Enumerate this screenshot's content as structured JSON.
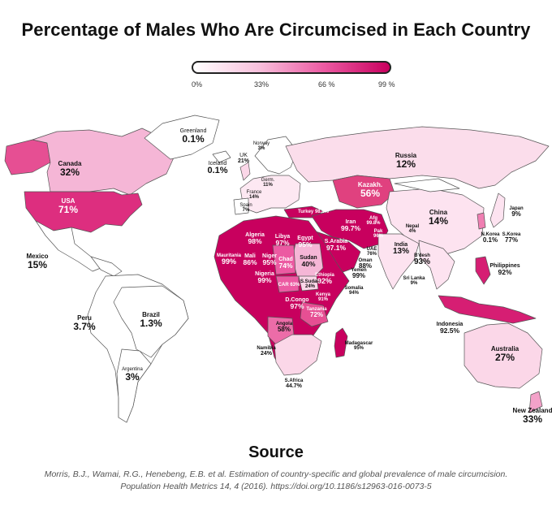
{
  "title": "Percentage of Males Who Are Circumcised in Each Country",
  "legend": {
    "ticks": [
      "0%",
      "33%",
      "66 %",
      "99 %"
    ],
    "gradient": [
      "#ffffff",
      "#f8c0dc",
      "#ec5aa2",
      "#c8005e"
    ]
  },
  "colors": {
    "low": "#fde3f0",
    "mid": "#f3a2c9",
    "high": "#e64f93",
    "top": "#c40b5e",
    "outline": "#555555"
  },
  "countries": [
    {
      "id": "greenland",
      "name": "Greenland",
      "value": "0.1%"
    },
    {
      "id": "iceland",
      "name": "Iceland",
      "value": "0.1%"
    },
    {
      "id": "norway",
      "name": "Norway",
      "value": "3%"
    },
    {
      "id": "uk",
      "name": "UK",
      "value": "21%"
    },
    {
      "id": "canada",
      "name": "Canada",
      "value": "32%"
    },
    {
      "id": "usa",
      "name": "USA",
      "value": "71%"
    },
    {
      "id": "mexico",
      "name": "Mexico",
      "value": "15%"
    },
    {
      "id": "peru",
      "name": "Peru",
      "value": "3.7%"
    },
    {
      "id": "brazil",
      "name": "Brazil",
      "value": "1.3%"
    },
    {
      "id": "argentina",
      "name": "Argentina",
      "value": "3%"
    },
    {
      "id": "russia",
      "name": "Russia",
      "value": "12%"
    },
    {
      "id": "kazakh",
      "name": "Kazakh.",
      "value": "56%"
    },
    {
      "id": "china",
      "name": "China",
      "value": "14%"
    },
    {
      "id": "japan",
      "name": "Japan",
      "value": "9%"
    },
    {
      "id": "nkorea",
      "name": "N.Korea",
      "value": "0.1%"
    },
    {
      "id": "skorea",
      "name": "S.Korea",
      "value": "77%"
    },
    {
      "id": "germany",
      "name": "Germ.",
      "value": "11%"
    },
    {
      "id": "france",
      "name": "France",
      "value": "14%"
    },
    {
      "id": "spain",
      "name": "Spain",
      "value": "7%"
    },
    {
      "id": "turkey",
      "name": "Turkey",
      "value": "98.6%"
    },
    {
      "id": "iran",
      "name": "Iran",
      "value": "99.7%"
    },
    {
      "id": "afg",
      "name": "Afg",
      "value": "99.8%"
    },
    {
      "id": "pak",
      "name": "Pak",
      "value": "96%"
    },
    {
      "id": "nepal",
      "name": "Nepal",
      "value": "4%"
    },
    {
      "id": "india",
      "name": "India",
      "value": "13%"
    },
    {
      "id": "bdesh",
      "name": "B'desh",
      "value": "93%"
    },
    {
      "id": "srilanka",
      "name": "Sri Lanka",
      "value": "9%"
    },
    {
      "id": "philippines",
      "name": "Philippines",
      "value": "92%"
    },
    {
      "id": "indonesia",
      "name": "Indonesia",
      "value": "92.5%"
    },
    {
      "id": "australia",
      "name": "Australia",
      "value": "27%"
    },
    {
      "id": "nz",
      "name": "New Zealand",
      "value": "33%"
    },
    {
      "id": "algeria",
      "name": "Algeria",
      "value": "98%"
    },
    {
      "id": "libya",
      "name": "Libya",
      "value": "97%"
    },
    {
      "id": "egypt",
      "name": "Egypt",
      "value": "95%"
    },
    {
      "id": "saudi",
      "name": "S.Arabia",
      "value": "97.1%"
    },
    {
      "id": "uae",
      "name": "UAE",
      "value": "76%"
    },
    {
      "id": "oman",
      "name": "Oman",
      "value": "88%"
    },
    {
      "id": "yemen",
      "name": "Yemen",
      "value": "99%"
    },
    {
      "id": "mauritania",
      "name": "Mauritania",
      "value": "99%"
    },
    {
      "id": "mali",
      "name": "Mali",
      "value": "86%"
    },
    {
      "id": "niger",
      "name": "Niger",
      "value": "95%"
    },
    {
      "id": "chad",
      "name": "Chad",
      "value": "74%"
    },
    {
      "id": "sudan",
      "name": "Sudan",
      "value": "40%"
    },
    {
      "id": "nigeria",
      "name": "Nigeria",
      "value": "99%"
    },
    {
      "id": "car",
      "name": "CAR",
      "value": "63%"
    },
    {
      "id": "ssudan",
      "name": "S.Sudan",
      "value": "24%"
    },
    {
      "id": "ethiopia",
      "name": "Ethiopia",
      "value": "92%"
    },
    {
      "id": "somalia",
      "name": "Somalia",
      "value": "94%"
    },
    {
      "id": "kenya",
      "name": "Kenya",
      "value": "91%"
    },
    {
      "id": "dcongo",
      "name": "D.Congo",
      "value": "97%"
    },
    {
      "id": "tanzania",
      "name": "Tanzania",
      "value": "72%"
    },
    {
      "id": "angola",
      "name": "Angola",
      "value": "58%"
    },
    {
      "id": "namibia",
      "name": "Namibia",
      "value": "24%"
    },
    {
      "id": "safrica",
      "name": "S.Africa",
      "value": "44.7%"
    },
    {
      "id": "madagascar",
      "name": "Madagascar",
      "value": "95%"
    }
  ],
  "source": {
    "heading": "Source",
    "line1": "Morris, B.J., Wamai, R.G., Henebeng, E.B. et al. Estimation of country-specific and global prevalence of male circumcision.",
    "line2": "Population Health Metrics 14, 4 (2016). https://doi.org/10.1186/s12963-016-0073-5"
  }
}
